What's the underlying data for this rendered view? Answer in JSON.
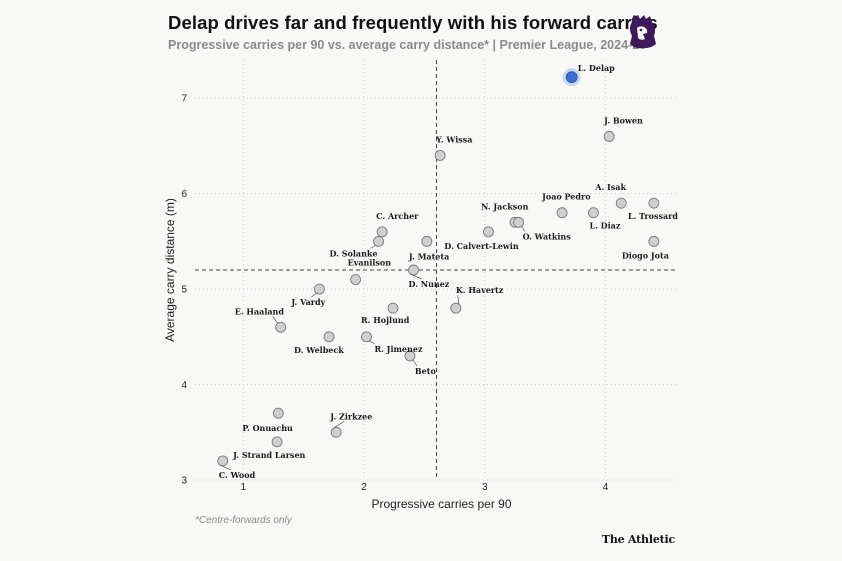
{
  "header": {
    "title": "Delap drives far and frequently with his forward carries",
    "subtitle": "Progressive carries per 90 vs. average carry distance* | Premier League, 2024-25"
  },
  "footer": {
    "footnote": "*Centre-forwards only",
    "brand": "The Athletic"
  },
  "logo": {
    "icon": "premier-league-lion-icon",
    "color": "#3d195b"
  },
  "colors": {
    "highlight": "#3b6fd8",
    "point_fill": "#cfcfcf",
    "point_stroke": "#7a7a7a"
  },
  "chart_data": {
    "type": "scatter",
    "title": "Delap drives far and frequently with his forward carries",
    "subtitle": "Progressive carries per 90 vs. average carry distance* | Premier League, 2024-25",
    "xlabel": "Progressive carries per 90",
    "ylabel": "Average carry distance (m)",
    "xlim": [
      0.6,
      4.6
    ],
    "ylim": [
      3,
      7.4
    ],
    "x_ticks": [
      "1",
      "2",
      "3",
      "4"
    ],
    "y_ticks": [
      "3",
      "4",
      "5",
      "6",
      "7"
    ],
    "grid": true,
    "reference_lines": {
      "x_average": 2.6,
      "y_average": 5.2
    },
    "points": [
      {
        "name": "L. Delap",
        "x": 3.72,
        "y": 7.22,
        "highlight": true
      },
      {
        "name": "J. Bowen",
        "x": 4.03,
        "y": 6.6
      },
      {
        "name": "Y. Wissa",
        "x": 2.63,
        "y": 6.4
      },
      {
        "name": "A. Isak",
        "x": 4.13,
        "y": 5.9
      },
      {
        "name": "L. Trossard",
        "x": 4.4,
        "y": 5.9
      },
      {
        "name": "Joao Pedro",
        "x": 3.64,
        "y": 5.8
      },
      {
        "name": "L. Diaz",
        "x": 3.9,
        "y": 5.8
      },
      {
        "name": "N. Jackson",
        "x": 3.25,
        "y": 5.7
      },
      {
        "name": "O. Watkins",
        "x": 3.28,
        "y": 5.7
      },
      {
        "name": "D. Calvert-Lewin",
        "x": 3.03,
        "y": 5.6
      },
      {
        "name": "Diogo Jota",
        "x": 4.4,
        "y": 5.5
      },
      {
        "name": "C. Archer",
        "x": 2.15,
        "y": 5.6
      },
      {
        "name": "D. Solanke",
        "x": 2.12,
        "y": 5.5
      },
      {
        "name": "J. Mateta",
        "x": 2.52,
        "y": 5.5
      },
      {
        "name": "D. Nunez",
        "x": 2.41,
        "y": 5.2
      },
      {
        "name": "Evanilson",
        "x": 1.93,
        "y": 5.1
      },
      {
        "name": "J. Vardy",
        "x": 1.63,
        "y": 5.0
      },
      {
        "name": "K. Havertz",
        "x": 2.76,
        "y": 4.8
      },
      {
        "name": "R. Hojlund",
        "x": 2.24,
        "y": 4.8
      },
      {
        "name": "E. Haaland",
        "x": 1.31,
        "y": 4.6
      },
      {
        "name": "D. Welbeck",
        "x": 1.71,
        "y": 4.5
      },
      {
        "name": "R. Jimenez",
        "x": 2.02,
        "y": 4.5
      },
      {
        "name": "Beto",
        "x": 2.38,
        "y": 4.3
      },
      {
        "name": "P. Onuachu",
        "x": 1.29,
        "y": 3.7
      },
      {
        "name": "J. Zirkzee",
        "x": 1.77,
        "y": 3.5
      },
      {
        "name": "J. Strand Larsen",
        "x": 1.28,
        "y": 3.4
      },
      {
        "name": "C. Wood",
        "x": 0.83,
        "y": 3.2
      }
    ]
  }
}
